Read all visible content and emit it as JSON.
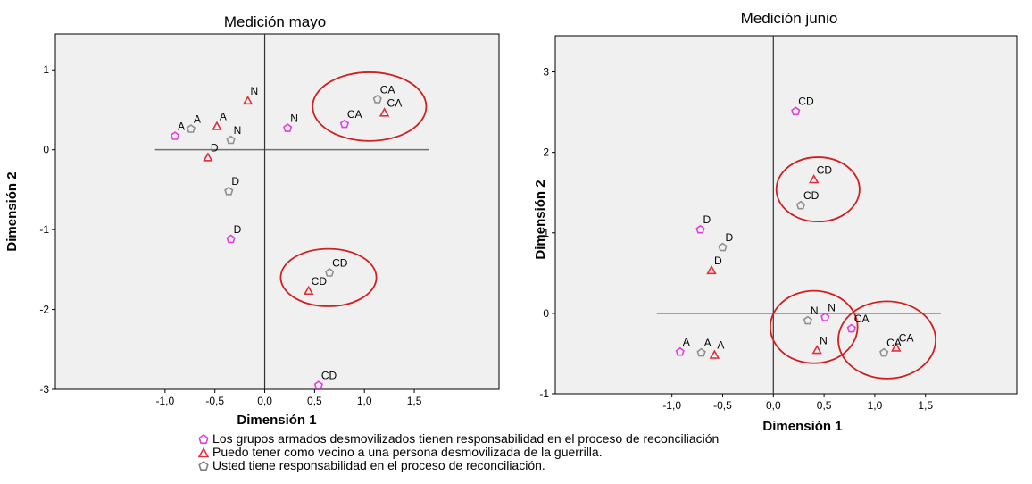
{
  "chart_data": [
    {
      "type": "scatter",
      "title": "Medición mayo",
      "xlabel": "Dimensión 1",
      "ylabel": "Dimensión 2",
      "xlim": [
        -2.1,
        2.35
      ],
      "ylim": [
        -3.0,
        1.45
      ],
      "xticks": [
        "-1,0",
        "-0,5",
        "0,0",
        "0,5",
        "1,0",
        "1,5"
      ],
      "yticks": [
        "1",
        "0",
        "-1",
        "-2",
        "-3"
      ],
      "grid": false,
      "series": [
        {
          "name": "Los grupos armados desmovilizados tienen responsabilidad en el proceso de reconciliación",
          "marker": "pentagon",
          "color": "#e040e0",
          "points": [
            {
              "x": -0.9,
              "y": 0.17,
              "label": "A"
            },
            {
              "x": 0.23,
              "y": 0.27,
              "label": "N"
            },
            {
              "x": 0.8,
              "y": 0.32,
              "label": "CA"
            },
            {
              "x": -0.34,
              "y": -1.12,
              "label": "D"
            },
            {
              "x": 0.54,
              "y": -2.95,
              "label": "CD"
            }
          ]
        },
        {
          "name": "Puedo tener como vecino a una persona desmovilizada de la guerrilla.",
          "marker": "triangle",
          "color": "#e0303a",
          "points": [
            {
              "x": -0.48,
              "y": 0.29,
              "label": "A"
            },
            {
              "x": -0.17,
              "y": 0.61,
              "label": "N"
            },
            {
              "x": 1.2,
              "y": 0.46,
              "label": "CA"
            },
            {
              "x": -0.57,
              "y": -0.1,
              "label": "D"
            },
            {
              "x": 0.44,
              "y": -1.77,
              "label": "CD"
            }
          ]
        },
        {
          "name": "Usted tiene responsabilidad en el proceso de reconciliación.",
          "marker": "pentagon",
          "color": "#909090",
          "points": [
            {
              "x": -0.74,
              "y": 0.26,
              "label": "A"
            },
            {
              "x": -0.34,
              "y": 0.12,
              "label": "N"
            },
            {
              "x": 1.13,
              "y": 0.63,
              "label": "CA"
            },
            {
              "x": -0.36,
              "y": -0.52,
              "label": "D"
            },
            {
              "x": 0.65,
              "y": -1.54,
              "label": "CD"
            }
          ]
        }
      ],
      "circles": [
        {
          "cx": 1.05,
          "cy": 0.54,
          "rx": 0.57,
          "ry": 0.43
        },
        {
          "cx": 0.64,
          "cy": -1.6,
          "rx": 0.48,
          "ry": 0.36
        }
      ]
    },
    {
      "type": "scatter",
      "title": "Medición junio",
      "xlabel": "Dimensión 1",
      "ylabel": "Dimensión 2",
      "xlim": [
        -2.15,
        2.4
      ],
      "ylim": [
        -1.0,
        3.45
      ],
      "xticks": [
        "-1,0",
        "-0,5",
        "0,0",
        "0,5",
        "1,0",
        "1,5"
      ],
      "yticks": [
        "3",
        "2",
        "1",
        "0",
        "-1"
      ],
      "grid": false,
      "series": [
        {
          "name": "Los grupos armados desmovilizados tienen responsabilidad en el proceso de reconciliación",
          "marker": "pentagon",
          "color": "#e040e0",
          "points": [
            {
              "x": -0.92,
              "y": -0.48,
              "label": "A"
            },
            {
              "x": 0.51,
              "y": -0.05,
              "label": "N"
            },
            {
              "x": 0.77,
              "y": -0.19,
              "label": "CA"
            },
            {
              "x": -0.72,
              "y": 1.04,
              "label": "D"
            },
            {
              "x": 0.22,
              "y": 2.51,
              "label": "CD"
            }
          ]
        },
        {
          "name": "Puedo tener como vecino a una persona desmovilizada de la guerrilla.",
          "marker": "triangle",
          "color": "#e0303a",
          "points": [
            {
              "x": -0.58,
              "y": -0.52,
              "label": "A"
            },
            {
              "x": 0.43,
              "y": -0.46,
              "label": "N"
            },
            {
              "x": 1.21,
              "y": -0.43,
              "label": "CA"
            },
            {
              "x": -0.61,
              "y": 0.53,
              "label": "D"
            },
            {
              "x": 0.4,
              "y": 1.66,
              "label": "CD"
            }
          ]
        },
        {
          "name": "Usted tiene responsabilidad en el proceso de reconciliación.",
          "marker": "pentagon",
          "color": "#909090",
          "points": [
            {
              "x": -0.71,
              "y": -0.49,
              "label": "A"
            },
            {
              "x": 0.34,
              "y": -0.09,
              "label": "N"
            },
            {
              "x": 1.09,
              "y": -0.49,
              "label": "CA"
            },
            {
              "x": -0.5,
              "y": 0.82,
              "label": "D"
            },
            {
              "x": 0.27,
              "y": 1.34,
              "label": "CD"
            }
          ]
        }
      ],
      "circles": [
        {
          "cx": 0.44,
          "cy": 1.54,
          "rx": 0.41,
          "ry": 0.4
        },
        {
          "cx": 0.4,
          "cy": -0.17,
          "rx": 0.43,
          "ry": 0.45
        },
        {
          "cx": 1.12,
          "cy": -0.33,
          "rx": 0.48,
          "ry": 0.48
        }
      ]
    }
  ],
  "legend": [
    {
      "label": "Los grupos armados desmovilizados tienen responsabilidad en el proceso de reconciliación",
      "marker": "pentagon",
      "color": "#e040e0"
    },
    {
      "label": "Puedo tener como vecino a una persona desmovilizada de la guerrilla.",
      "marker": "triangle",
      "color": "#e0303a"
    },
    {
      "label": "Usted tiene responsabilidad en el proceso de reconciliación.",
      "marker": "pentagon",
      "color": "#909090"
    }
  ],
  "colors": {
    "plot_background": "#f0f0f0",
    "circle": "#d02020",
    "axis_line": "#707070"
  }
}
